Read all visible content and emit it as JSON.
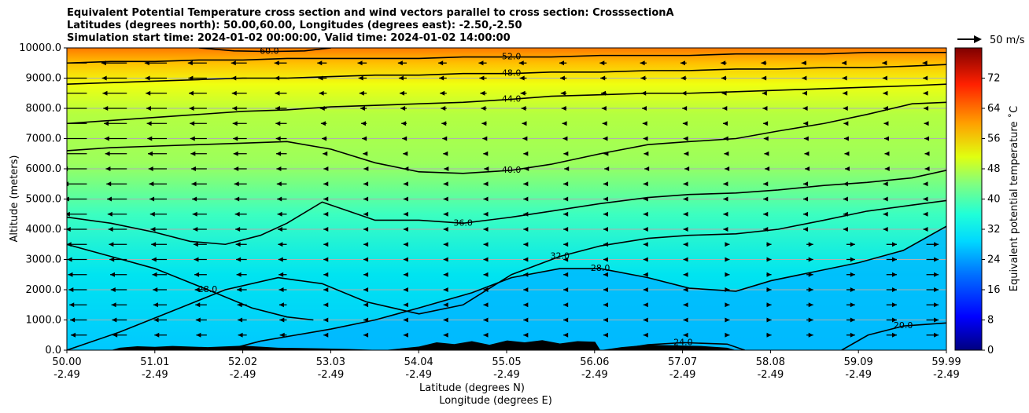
{
  "header": {
    "title_line1": "Equivalent Potential Temperature cross section and wind vectors parallel to cross section: CrosssectionA",
    "title_line2": "Latitudes (degrees north): 50.00,60.00, Longitudes (degrees east): -2.50,-2.50",
    "title_line3": "Simulation start time: 2024-01-02 00:00:00, Valid time: 2024-01-02 14:00:00"
  },
  "chart_data": {
    "type": "heatmap",
    "xlabel_lat": "Latitude (degrees N)",
    "xlabel_lon": "Longitude (degrees E)",
    "ylabel": "Altitude (meters)",
    "x_range": [
      50.0,
      59.99
    ],
    "ylim": [
      0,
      10000
    ],
    "grid": "horizontal",
    "x_ticks_lat": [
      "50.00",
      "51.01",
      "52.02",
      "53.03",
      "54.04",
      "55.05",
      "56.06",
      "57.07",
      "58.08",
      "59.09",
      "59.99"
    ],
    "x_ticks_lon": [
      "-2.49",
      "-2.49",
      "-2.49",
      "-2.49",
      "-2.49",
      "-2.49",
      "-2.49",
      "-2.49",
      "-2.49",
      "-2.49",
      "-2.49"
    ],
    "y_ticks": [
      "0.0",
      "1000.0",
      "2000.0",
      "3000.0",
      "4000.0",
      "5000.0",
      "6000.0",
      "7000.0",
      "8000.0",
      "9000.0",
      "10000.0"
    ],
    "y_tick_values": [
      0,
      1000,
      2000,
      3000,
      4000,
      5000,
      6000,
      7000,
      8000,
      9000,
      10000
    ],
    "colorbar": {
      "label": "Equivalent potential temperature ˚C",
      "range": [
        0,
        80
      ],
      "tick_values": [
        0,
        8,
        16,
        24,
        32,
        40,
        48,
        56,
        64,
        72
      ],
      "tick_labels": [
        "0",
        "8",
        "16",
        "24",
        "32",
        "40",
        "48",
        "56",
        "64",
        "72"
      ]
    },
    "wind_key": {
      "label": "50 m/s",
      "value": 50
    },
    "contours": [
      {
        "level": "20.0",
        "x": [
          58.8,
          59.1,
          59.5,
          59.99
        ],
        "y": [
          0,
          500,
          800,
          900
        ]
      },
      {
        "level": "24.0",
        "x": [
          56.2,
          56.6,
          57.0,
          57.5,
          57.7
        ],
        "y": [
          0,
          180,
          250,
          200,
          0
        ]
      },
      {
        "level": "28.0",
        "x": [
          50.0,
          50.5,
          51.0,
          51.6,
          52.1,
          52.5,
          52.8
        ],
        "y": [
          3500,
          3100,
          2700,
          2000,
          1400,
          1100,
          1000
        ]
      },
      {
        "level": "28.0",
        "x": [
          51.8,
          52.2,
          52.6,
          53.0,
          53.5,
          54.0,
          54.6,
          55.05,
          55.6,
          56.06,
          56.6,
          57.07,
          57.6,
          58.0,
          58.5,
          59.0,
          59.5,
          59.99
        ],
        "y": [
          0,
          300,
          500,
          700,
          1000,
          1400,
          1900,
          2400,
          2700,
          2700,
          2400,
          2050,
          1950,
          2300,
          2600,
          2900,
          3300,
          4100
        ]
      },
      {
        "level": "32.0",
        "x": [
          50.0,
          50.6,
          51.2,
          51.8,
          52.4,
          52.9,
          53.4,
          54.0,
          54.5,
          55.05,
          55.6,
          56.06,
          56.6,
          57.07,
          57.6,
          58.08,
          58.6,
          59.09,
          59.6,
          59.99
        ],
        "y": [
          0,
          600,
          1300,
          2000,
          2400,
          2200,
          1600,
          1200,
          1500,
          2500,
          3100,
          3450,
          3700,
          3800,
          3850,
          4000,
          4300,
          4600,
          4800,
          4950
        ]
      },
      {
        "level": "36.0",
        "x": [
          50.0,
          50.5,
          51.0,
          51.4,
          51.8,
          52.2,
          52.5,
          52.9,
          53.2,
          53.5,
          54.0,
          54.5,
          55.05,
          55.5,
          56.06,
          56.6,
          57.07,
          57.6,
          58.08,
          58.6,
          59.09,
          59.6,
          59.99
        ],
        "y": [
          4400,
          4200,
          3900,
          3600,
          3500,
          3800,
          4200,
          4900,
          4600,
          4300,
          4300,
          4200,
          4400,
          4600,
          4850,
          5050,
          5150,
          5200,
          5300,
          5450,
          5550,
          5700,
          5950
        ]
      },
      {
        "level": "40.0",
        "x": [
          50.0,
          50.5,
          51.0,
          51.5,
          52.0,
          52.5,
          53.0,
          53.5,
          54.0,
          54.5,
          55.05,
          55.5,
          56.06,
          56.6,
          57.07,
          57.6,
          58.08,
          58.6,
          59.09,
          59.6,
          59.99
        ],
        "y": [
          6600,
          6700,
          6750,
          6800,
          6850,
          6900,
          6650,
          6200,
          5900,
          5850,
          5950,
          6150,
          6500,
          6800,
          6900,
          7000,
          7250,
          7500,
          7800,
          8150,
          8200
        ]
      },
      {
        "level": "44.0",
        "x": [
          50.0,
          50.5,
          51.0,
          51.5,
          52.0,
          52.5,
          53.0,
          53.5,
          54.0,
          54.5,
          55.05,
          55.5,
          56.06,
          56.6,
          57.07,
          57.6,
          58.08,
          58.6,
          59.09,
          59.6,
          59.99
        ],
        "y": [
          7500,
          7600,
          7700,
          7800,
          7900,
          7950,
          8050,
          8100,
          8150,
          8200,
          8300,
          8400,
          8450,
          8500,
          8500,
          8550,
          8600,
          8650,
          8700,
          8750,
          8800
        ]
      },
      {
        "level": "48.0",
        "x": [
          50.0,
          50.5,
          51.0,
          51.5,
          52.0,
          52.5,
          53.0,
          53.5,
          54.0,
          54.5,
          55.05,
          55.5,
          56.06,
          56.6,
          57.07,
          57.6,
          58.08,
          58.6,
          59.09,
          59.6,
          59.99
        ],
        "y": [
          8800,
          8850,
          8900,
          8950,
          9000,
          9000,
          9050,
          9100,
          9100,
          9150,
          9150,
          9200,
          9200,
          9250,
          9250,
          9300,
          9300,
          9350,
          9350,
          9400,
          9450
        ]
      },
      {
        "level": "52.0",
        "x": [
          50.0,
          50.5,
          51.0,
          51.5,
          52.0,
          52.5,
          53.0,
          53.5,
          54.0,
          54.5,
          55.05,
          55.5,
          56.06,
          56.6,
          57.07,
          57.6,
          58.08,
          58.6,
          59.09,
          59.6,
          59.99
        ],
        "y": [
          9500,
          9550,
          9550,
          9600,
          9600,
          9650,
          9650,
          9650,
          9650,
          9700,
          9700,
          9700,
          9750,
          9750,
          9750,
          9800,
          9800,
          9800,
          9850,
          9850,
          9850
        ]
      },
      {
        "level": "60.0",
        "x": [
          51.5,
          51.9,
          52.3,
          52.7,
          53.0
        ],
        "y": [
          10000,
          9900,
          9880,
          9900,
          10000
        ]
      }
    ],
    "terrain": {
      "x": [
        50.0,
        50.5,
        50.6,
        50.8,
        51.0,
        51.2,
        51.6,
        52.0,
        52.4,
        52.9,
        53.2,
        53.6,
        54.0,
        54.2,
        54.4,
        54.6,
        54.8,
        55.0,
        55.2,
        55.4,
        55.6,
        55.8,
        56.0,
        56.06,
        56.3,
        56.6,
        56.9,
        57.2,
        57.5,
        57.6,
        59.99
      ],
      "y": [
        0,
        0,
        80,
        130,
        110,
        140,
        100,
        150,
        80,
        60,
        40,
        0,
        120,
        260,
        200,
        300,
        180,
        320,
        260,
        330,
        220,
        300,
        280,
        0,
        100,
        180,
        160,
        140,
        80,
        0,
        0
      ]
    }
  }
}
